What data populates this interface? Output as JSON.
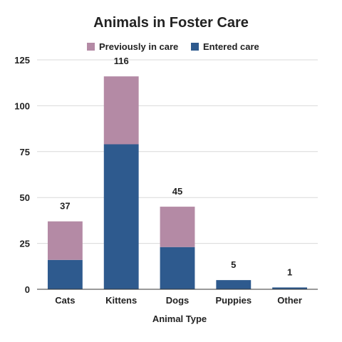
{
  "chart_data": {
    "type": "bar",
    "stacked": true,
    "title": "Animals in Foster Care",
    "xlabel": "Animal Type",
    "ylabel": "",
    "categories": [
      "Cats",
      "Kittens",
      "Dogs",
      "Puppies",
      "Other"
    ],
    "series": [
      {
        "name": "Entered care",
        "values": [
          16,
          79,
          23,
          5,
          1
        ],
        "color": "#2e5a8e"
      },
      {
        "name": "Previously in care",
        "values": [
          21,
          37,
          22,
          0,
          0
        ],
        "color": "#b48aa5"
      }
    ],
    "totals": [
      "37",
      "116",
      "45",
      "5",
      "1"
    ],
    "ylim": [
      0,
      125
    ],
    "yticks": [
      "0",
      "25",
      "50",
      "75",
      "100",
      "125"
    ],
    "grid": true,
    "legend_position": "top",
    "legend_order": [
      "Previously in care",
      "Entered care"
    ]
  }
}
